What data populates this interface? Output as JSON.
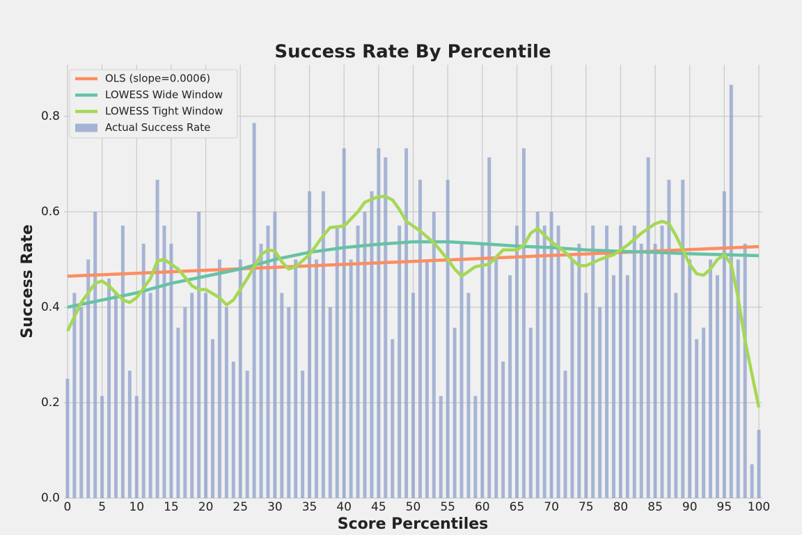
{
  "chart_data": {
    "type": "bar",
    "title": "Success Rate By Percentile",
    "xlabel": "Score Percentiles",
    "ylabel": "Success Rate",
    "xlim": [
      -0.5,
      100.5
    ],
    "ylim": [
      0,
      0.908
    ],
    "xticks": [
      0,
      5,
      10,
      15,
      20,
      25,
      30,
      35,
      40,
      45,
      50,
      55,
      60,
      65,
      70,
      75,
      80,
      85,
      90,
      95,
      100
    ],
    "yticks": [
      {
        "value": 0,
        "label": "0.0"
      },
      0.2,
      0.4,
      0.6,
      0.8
    ],
    "grid": true,
    "legend": "upper left",
    "x": [
      0,
      1,
      2,
      3,
      4,
      5,
      6,
      7,
      8,
      9,
      10,
      11,
      12,
      13,
      14,
      15,
      16,
      17,
      18,
      19,
      20,
      21,
      22,
      23,
      24,
      25,
      26,
      27,
      28,
      29,
      30,
      31,
      32,
      33,
      34,
      35,
      36,
      37,
      38,
      39,
      40,
      41,
      42,
      43,
      44,
      45,
      46,
      47,
      48,
      49,
      50,
      51,
      52,
      53,
      54,
      55,
      56,
      57,
      58,
      59,
      60,
      61,
      62,
      63,
      64,
      65,
      66,
      67,
      68,
      69,
      70,
      71,
      72,
      73,
      74,
      75,
      76,
      77,
      78,
      79,
      80,
      81,
      82,
      83,
      84,
      85,
      86,
      87,
      88,
      89,
      90,
      91,
      92,
      93,
      94,
      95,
      96,
      97,
      98,
      99,
      100
    ],
    "series": [
      {
        "name": "OLS (slope=0.0006)",
        "type": "line",
        "color": "#fc8d62",
        "x": [
          0,
          100
        ],
        "values": [
          0.465,
          0.527
        ]
      },
      {
        "name": "LOWESS Wide Window",
        "type": "line",
        "color": "#66c2a5",
        "x": [
          0,
          5,
          10,
          15,
          20,
          25,
          30,
          35,
          40,
          45,
          50,
          55,
          60,
          65,
          70,
          75,
          80,
          85,
          90,
          95,
          100
        ],
        "values": [
          0.4,
          0.415,
          0.43,
          0.45,
          0.465,
          0.48,
          0.5,
          0.515,
          0.525,
          0.532,
          0.537,
          0.537,
          0.533,
          0.528,
          0.525,
          0.52,
          0.517,
          0.515,
          0.512,
          0.51,
          0.508
        ]
      },
      {
        "name": "LOWESS Tight Window",
        "type": "line",
        "color": "#a6d854",
        "x": [
          0,
          2,
          4,
          5,
          6,
          8,
          9,
          10,
          12,
          13,
          14,
          16,
          18,
          19,
          20,
          22,
          23,
          24,
          26,
          28,
          29,
          30,
          31,
          32,
          33,
          35,
          37,
          38,
          40,
          42,
          43,
          45,
          46,
          47,
          48,
          49,
          51,
          53,
          55,
          56,
          57,
          59,
          61,
          63,
          65,
          66,
          67,
          68,
          70,
          72,
          73,
          74,
          75,
          77,
          79,
          81,
          83,
          85,
          86,
          87,
          88,
          89,
          90,
          91,
          92,
          93,
          94,
          95,
          96,
          97,
          98,
          100
        ],
        "values": [
          0.35,
          0.41,
          0.45,
          0.455,
          0.445,
          0.415,
          0.41,
          0.42,
          0.46,
          0.497,
          0.5,
          0.48,
          0.445,
          0.437,
          0.437,
          0.42,
          0.405,
          0.415,
          0.46,
          0.51,
          0.52,
          0.518,
          0.495,
          0.48,
          0.485,
          0.51,
          0.55,
          0.567,
          0.57,
          0.6,
          0.62,
          0.632,
          0.632,
          0.625,
          0.605,
          0.58,
          0.56,
          0.535,
          0.5,
          0.48,
          0.465,
          0.485,
          0.49,
          0.52,
          0.52,
          0.53,
          0.555,
          0.565,
          0.537,
          0.515,
          0.5,
          0.487,
          0.487,
          0.5,
          0.51,
          0.53,
          0.555,
          0.575,
          0.58,
          0.575,
          0.55,
          0.52,
          0.49,
          0.47,
          0.467,
          0.48,
          0.5,
          0.51,
          0.49,
          0.42,
          0.33,
          0.19
        ]
      },
      {
        "name": "Actual Success Rate",
        "type": "bar",
        "color": "#8da0cb",
        "values": [
          0.25,
          0.43,
          0.4,
          0.5,
          0.6,
          0.214,
          0.46,
          0.43,
          0.571,
          0.267,
          0.214,
          0.533,
          0.43,
          0.667,
          0.571,
          0.533,
          0.357,
          0.4,
          0.43,
          0.6,
          0.43,
          0.333,
          0.5,
          0.4,
          0.286,
          0.5,
          0.267,
          0.786,
          0.533,
          0.571,
          0.6,
          0.43,
          0.4,
          0.5,
          0.267,
          0.643,
          0.5,
          0.643,
          0.4,
          0.571,
          0.733,
          0.5,
          0.571,
          0.6,
          0.643,
          0.733,
          0.714,
          0.333,
          0.571,
          0.733,
          0.43,
          0.667,
          0.5,
          0.6,
          0.214,
          0.667,
          0.357,
          0.533,
          0.43,
          0.214,
          0.533,
          0.714,
          0.5,
          0.286,
          0.467,
          0.571,
          0.733,
          0.357,
          0.6,
          0.571,
          0.6,
          0.571,
          0.267,
          0.5,
          0.533,
          0.43,
          0.571,
          0.4,
          0.571,
          0.467,
          0.571,
          0.467,
          0.571,
          0.533,
          0.714,
          0.533,
          0.571,
          0.667,
          0.43,
          0.667,
          0.5,
          0.333,
          0.357,
          0.5,
          0.467,
          0.643,
          0.866,
          0.5,
          0.533,
          0.071,
          0.143
        ]
      }
    ]
  }
}
